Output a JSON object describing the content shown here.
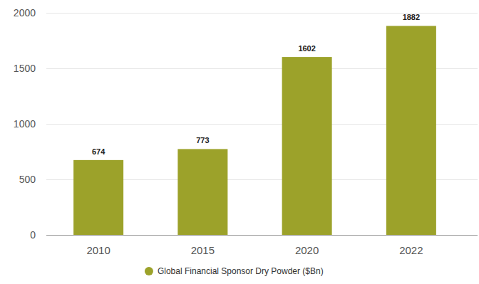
{
  "chart_data": {
    "type": "bar",
    "categories": [
      "2010",
      "2015",
      "2020",
      "2022"
    ],
    "series": [
      {
        "name": "Global Financial Sponsor Dry Powder ($Bn)",
        "color": "#9ca22a",
        "values": [
          674,
          773,
          1602,
          1882
        ]
      }
    ],
    "ylim": [
      0,
      2000
    ],
    "yticks": [
      0,
      500,
      1000,
      1500,
      2000
    ],
    "grid": true,
    "legend": "bottom",
    "data_labels": true
  }
}
